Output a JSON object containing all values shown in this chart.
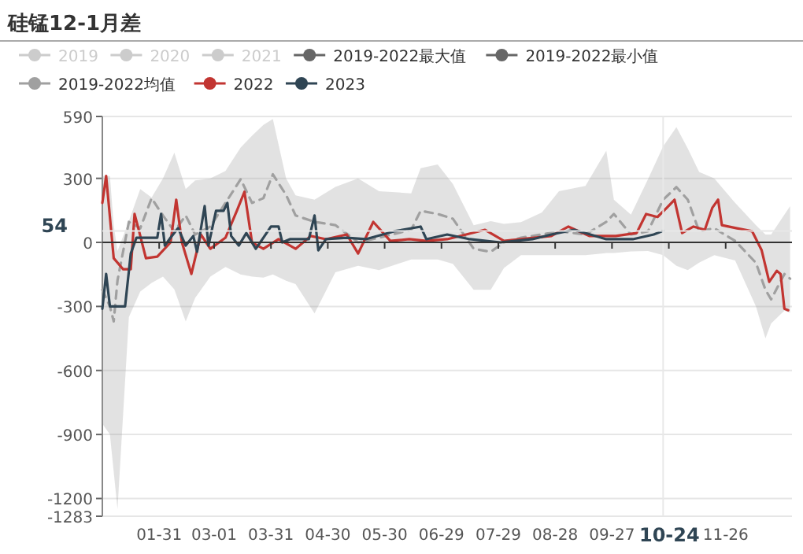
{
  "chart_data": {
    "type": "line",
    "title": "硅锰12-1月差",
    "xlim": [
      "--01-01",
      "--12-31"
    ],
    "xticks": [
      {
        "value": "--01-31",
        "label": "01-31"
      },
      {
        "value": "--03-01",
        "label": "03-01"
      },
      {
        "value": "--03-31",
        "label": "03-31"
      },
      {
        "value": "--04-30",
        "label": "04-30"
      },
      {
        "value": "--05-30",
        "label": "05-30"
      },
      {
        "value": "--06-29",
        "label": "06-29"
      },
      {
        "value": "--07-29",
        "label": "07-29"
      },
      {
        "value": "--08-28",
        "label": "08-28"
      },
      {
        "value": "--09-27",
        "label": "09-27"
      },
      {
        "value": "--10-27",
        "label": null
      },
      {
        "value": "--11-26",
        "label": "11-26"
      }
    ],
    "ylim": [
      -1283,
      590
    ],
    "yticks": [
      -1283,
      -1200,
      -900,
      -600,
      -300,
      0,
      300,
      590
    ],
    "grid": "y",
    "legend": "top",
    "marker": "none",
    "ref_lines": [
      {
        "axis": "x",
        "value": "--10-24",
        "label": "10-24",
        "color": "#e8e8e8"
      },
      {
        "axis": "y",
        "value": 54,
        "label": "54",
        "color": "#e8e8e8"
      }
    ],
    "series": [
      {
        "name": "2019",
        "color": "#cccccc"
      },
      {
        "name": "2020",
        "color": "#cccccc"
      },
      {
        "name": "2021",
        "color": "#cccccc"
      },
      {
        "name": "2019-2022最大值",
        "color": "#666666"
      },
      {
        "name": "2019-2022最小值",
        "color": "#666666"
      },
      {
        "name": "2019-2022均值",
        "color": "#a0a0a0",
        "line_style": "dashed",
        "x": [
          "--01-01",
          "--01-05",
          "--01-07",
          "--01-09",
          "--01-15",
          "--01-21",
          "--01-27",
          "--02-02",
          "--02-08",
          "--02-14",
          "--02-19",
          "--02-27",
          "--03-07",
          "--03-15",
          "--03-21",
          "--03-27",
          "--04-01",
          "--04-08",
          "--04-13",
          "--04-23",
          "--05-04",
          "--05-16",
          "--05-27",
          "--06-13",
          "--06-18",
          "--06-27",
          "--07-05",
          "--07-16",
          "--07-25",
          "--08-01",
          "--08-10",
          "--08-21",
          "--08-30",
          "--09-13",
          "--09-24",
          "--09-28",
          "--10-07",
          "--10-16",
          "--10-24",
          "--10-31",
          "--11-06",
          "--11-12",
          "--11-20",
          "--12-01",
          "--12-12",
          "--12-17",
          "--12-20",
          "--12-27",
          "--12-30"
        ],
        "values": [
          -222,
          -300,
          -370,
          -178,
          96,
          66,
          207,
          126,
          52,
          126,
          37,
          74,
          185,
          296,
          185,
          207,
          319,
          222,
          126,
          96,
          81,
          0,
          22,
          59,
          148,
          133,
          111,
          -30,
          -44,
          0,
          22,
          37,
          52,
          37,
          96,
          133,
          37,
          52,
          200,
          259,
          200,
          52,
          66,
          7,
          -96,
          -222,
          -267,
          -148,
          -170
        ],
        "upper": [
          311,
          311,
          80,
          -40,
          100,
          250,
          210,
          300,
          420,
          250,
          290,
          300,
          335,
          444,
          500,
          550,
          578,
          300,
          220,
          200,
          260,
          300,
          240,
          230,
          348,
          365,
          274,
          80,
          100,
          87,
          95,
          140,
          240,
          265,
          430,
          200,
          130,
          296,
          450,
          540,
          440,
          330,
          300,
          185,
          80,
          37,
          37,
          130,
          170
        ],
        "lower": [
          -850,
          -900,
          -1075,
          -1250,
          -350,
          -230,
          -190,
          -160,
          -220,
          -370,
          -260,
          -160,
          -115,
          -150,
          -160,
          -165,
          -150,
          -180,
          -195,
          -333,
          -140,
          -110,
          -130,
          -80,
          -80,
          -80,
          -100,
          -222,
          -222,
          -120,
          -60,
          -60,
          -60,
          -60,
          -50,
          -50,
          -42,
          -40,
          -60,
          -110,
          -130,
          -95,
          -60,
          -85,
          -300,
          -450,
          -380,
          -320,
          -330
        ]
      },
      {
        "name": "2022",
        "color": "#c23531",
        "x": [
          "--01-01",
          "--01-03",
          "--01-07",
          "--01-12",
          "--01-16",
          "--01-18",
          "--01-20",
          "--01-24",
          "--01-30",
          "--02-06",
          "--02-09",
          "--02-12",
          "--02-17",
          "--02-22",
          "--02-27",
          "--03-07",
          "--03-13",
          "--03-17",
          "--03-21",
          "--03-27",
          "--04-04",
          "--04-13",
          "--04-21",
          "--04-29",
          "--05-10",
          "--05-16",
          "--05-24",
          "--06-02",
          "--06-12",
          "--06-21",
          "--07-02",
          "--07-22",
          "--08-01",
          "--08-10",
          "--08-26",
          "--09-04",
          "--09-15",
          "--09-29",
          "--10-10",
          "--10-15",
          "--10-21",
          "--10-26",
          "--10-30",
          "--11-03",
          "--11-09",
          "--11-15",
          "--11-19",
          "--11-22",
          "--11-24",
          "--12-02",
          "--12-10",
          "--12-15",
          "--12-19",
          "--12-23",
          "--12-25",
          "--12-27",
          "--12-29"
        ],
        "values": [
          185,
          311,
          -74,
          -126,
          -126,
          133,
          66,
          -74,
          -67,
          0,
          200,
          0,
          -148,
          37,
          -30,
          22,
          148,
          237,
          0,
          -30,
          15,
          -30,
          30,
          15,
          37,
          -52,
          96,
          7,
          15,
          7,
          15,
          59,
          7,
          15,
          30,
          74,
          30,
          30,
          44,
          133,
          119,
          163,
          200,
          44,
          74,
          59,
          163,
          200,
          81,
          66,
          52,
          -37,
          -185,
          -133,
          -148,
          -311,
          -318
        ]
      },
      {
        "name": "2023",
        "color": "#2f4554",
        "x": [
          "--01-01",
          "--01-03",
          "--01-05",
          "--01-13",
          "--01-16",
          "--01-19",
          "--01-30",
          "--02-01",
          "--02-03",
          "--02-06",
          "--02-10",
          "--02-14",
          "--02-18",
          "--02-20",
          "--02-24",
          "--02-26",
          "--03-02",
          "--03-06",
          "--03-08",
          "--03-10",
          "--03-14",
          "--03-18",
          "--03-23",
          "--03-27",
          "--03-31",
          "--04-04",
          "--04-06",
          "--04-10",
          "--04-20",
          "--04-23",
          "--04-25",
          "--04-29",
          "--05-10",
          "--05-20",
          "--06-04",
          "--06-18",
          "--06-21",
          "--07-02",
          "--07-14",
          "--07-30",
          "--08-16",
          "--08-26",
          "--09-07",
          "--09-24",
          "--10-08",
          "--10-19",
          "--10-24"
        ],
        "values": [
          -311,
          -148,
          -300,
          -300,
          -52,
          22,
          22,
          133,
          -15,
          22,
          67,
          -15,
          30,
          -44,
          170,
          -15,
          148,
          148,
          185,
          30,
          -15,
          44,
          -30,
          22,
          74,
          74,
          0,
          15,
          15,
          126,
          -37,
          15,
          22,
          15,
          52,
          74,
          15,
          37,
          15,
          0,
          15,
          37,
          59,
          15,
          15,
          37,
          54
        ]
      }
    ]
  }
}
